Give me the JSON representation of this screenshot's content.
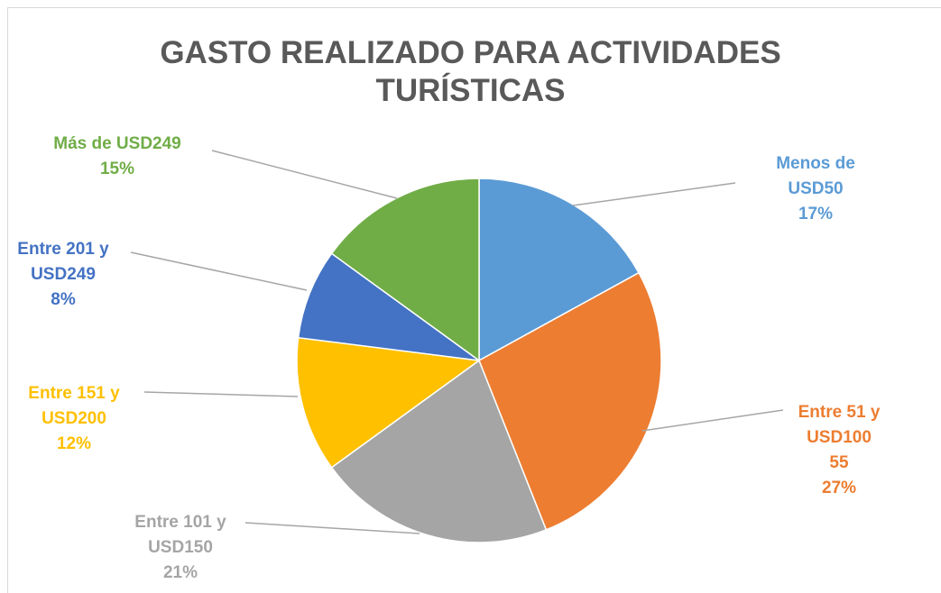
{
  "chart_data": {
    "type": "pie",
    "title": "GASTO REALIZADO PARA ACTIVIDADES\nTURÍSTICAS",
    "categories": [
      "Menos de USD50",
      "Entre 51 y\nUSD100\n55",
      "Entre 101 y\nUSD150",
      "Entre 151 y\nUSD200",
      "Entre 201 y\nUSD249",
      "Más de USD249"
    ],
    "values": [
      17,
      27,
      21,
      12,
      8,
      15
    ],
    "value_labels": [
      "17%",
      "27%",
      "21%",
      "12%",
      "8%",
      "15%"
    ],
    "colors": [
      "#5b9bd5",
      "#ed7d31",
      "#a5a5a5",
      "#ffc000",
      "#4472c4",
      "#70ad47"
    ]
  }
}
